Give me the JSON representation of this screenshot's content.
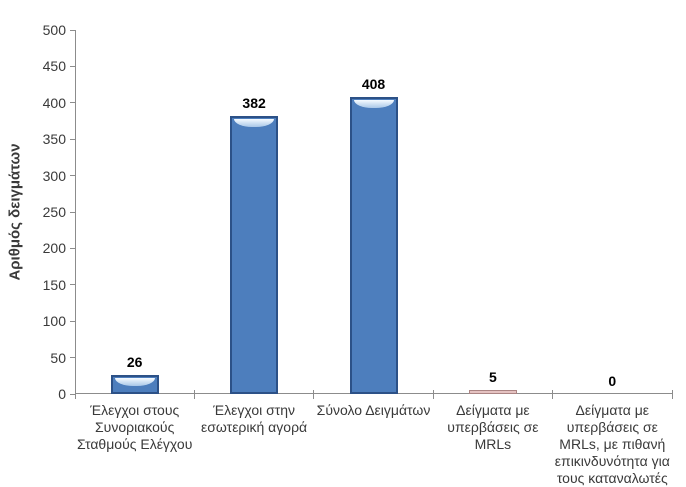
{
  "chart_data": {
    "type": "bar",
    "title": "",
    "xlabel": "",
    "ylabel": "Αριθμός δειγμάτων",
    "ylim": [
      0,
      500
    ],
    "yticks": [
      0,
      50,
      100,
      150,
      200,
      250,
      300,
      350,
      400,
      450,
      500
    ],
    "grid": false,
    "legend": "none",
    "categories": [
      "Έλεγχοι στους Συνοριακούς Σταθμούς Ελέγχου",
      "Έλεγχοι στην εσωτερική αγορά",
      "Σύνολο Δειγμάτων",
      "Δείγματα με υπερβάσεις σε MRLs",
      "Δείγματα με υπερβάσεις σε MRLs, με πιθανή επικινδυνότητα για τους καταναλωτές"
    ],
    "category_lines": [
      [
        "Έλεγχοι στους",
        "Συνοριακούς",
        "Σταθμούς Ελέγχου"
      ],
      [
        "Έλεγχοι στην",
        "εσωτερική αγορά"
      ],
      [
        "Σύνολο Δειγμάτων"
      ],
      [
        "Δείγματα με",
        "υπερβάσεις σε",
        "MRLs"
      ],
      [
        "Δείγματα με",
        "υπερβάσεις σε",
        "MRLs, με πιθανή",
        "επικινδυνότητα για",
        "τους καταναλωτές"
      ]
    ],
    "values": [
      26,
      382,
      408,
      5,
      0
    ],
    "bar_styles": [
      "blue",
      "blue",
      "blue",
      "pink",
      "blue"
    ],
    "colors": {
      "blue_fill": "#4d7ebd",
      "blue_border": "#2c5187",
      "gloss_top": "#f6fbff",
      "gloss_bottom": "#a9c7e8",
      "pink_fill": "#e5c2c1",
      "pink_border": "#ab8483",
      "axis": "#8c8c8c",
      "tick_text": "#3a3a3a",
      "value_text": "#000000"
    }
  }
}
